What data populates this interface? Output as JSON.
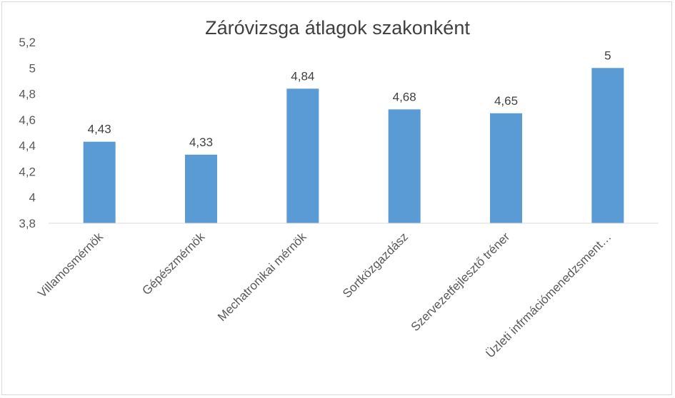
{
  "chart_data": {
    "type": "bar",
    "title": "Záróvizsga átlagok szakonként",
    "categories": [
      "Villamosmérnök",
      "Gépészmérnök",
      "Mechatronikai mérnök",
      "Sortközgazdász",
      "Szervezetfejlesztő tréner",
      "Üzleti infrmációmenedzsment…"
    ],
    "values": [
      4.43,
      4.33,
      4.84,
      4.68,
      4.65,
      5
    ],
    "value_labels": [
      "4,43",
      "4,33",
      "4,84",
      "4,68",
      "4,65",
      "5"
    ],
    "ylim": [
      3.8,
      5.2
    ],
    "yticks": [
      3.8,
      4,
      4.2,
      4.4,
      4.6,
      4.8,
      5,
      5.2
    ],
    "ytick_labels": [
      "3,8",
      "4",
      "4,2",
      "4,4",
      "4,6",
      "4,8",
      "5",
      "5,2"
    ],
    "bar_color": "#5b9bd5",
    "grid": false,
    "legend": "none",
    "xlabel": "",
    "ylabel": ""
  }
}
